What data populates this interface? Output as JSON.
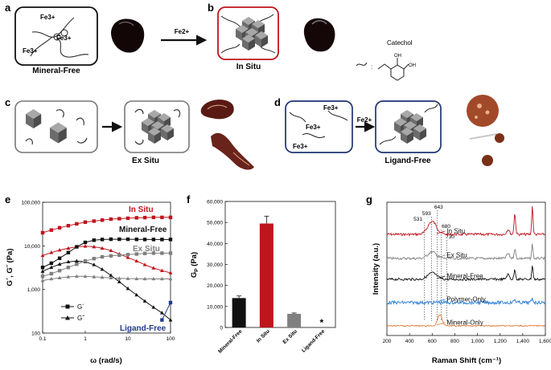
{
  "panels": {
    "a": {
      "letter": "a",
      "caption": "Mineral-Free",
      "ions": [
        "Fe3+",
        "Fe3+",
        "Fe3+"
      ]
    },
    "b": {
      "letter": "b",
      "caption": "In Situ",
      "arrow_label": "Fe2+",
      "catechol_label": "Catechol",
      "oh1": "OH",
      "oh2": "OH"
    },
    "c": {
      "letter": "c",
      "caption": "Ex Situ"
    },
    "d": {
      "letter": "d",
      "caption": "Ligand-Free",
      "ions": [
        "Fe3+",
        "Fe3+",
        "Fe3+"
      ],
      "arrow_label": "Fe2+"
    }
  },
  "colors": {
    "insitu": "#c0141c",
    "mineralfree": "#111111",
    "exsitu": "#808080",
    "ligandfree": "#233a8a",
    "polymeronly": "#2a7dd4",
    "mineralonly": "#e07b39",
    "frame_b": "#c0141c",
    "frame_d": "#1f3572"
  },
  "chart_data": [
    {
      "panel": "e",
      "type": "line",
      "xlabel": "ω (rad/s)",
      "ylabel": "G´, G˝ (Pa)",
      "xscale": "log",
      "yscale": "log",
      "xlim": [
        0.1,
        100
      ],
      "ylim": [
        100,
        100000
      ],
      "xticks": [
        "0.1",
        "1",
        "10",
        "100"
      ],
      "yticks": [
        "100",
        "1,000",
        "10,000",
        "100,000"
      ],
      "legend": [
        {
          "label": "G´",
          "marker": "square"
        },
        {
          "label": "G˝",
          "marker": "triangle"
        }
      ],
      "series": [
        {
          "name": "In Situ G´",
          "label": "In Situ",
          "color": "#c0141c",
          "marker": "square",
          "x": [
            0.1,
            0.16,
            0.25,
            0.4,
            0.63,
            1,
            1.6,
            2.5,
            4,
            6.3,
            10,
            16,
            25,
            40,
            63,
            100
          ],
          "y": [
            20000,
            23000,
            26000,
            29000,
            32000,
            35000,
            37000,
            39000,
            41000,
            42000,
            43000,
            44000,
            44500,
            45000,
            45000,
            45000
          ]
        },
        {
          "name": "In Situ G˝",
          "label": "",
          "color": "#c0141c",
          "marker": "triangle",
          "x": [
            0.1,
            0.16,
            0.25,
            0.4,
            0.63,
            1,
            1.6,
            2.5,
            4,
            6.3,
            10,
            16,
            25,
            40,
            63,
            100
          ],
          "y": [
            6000,
            7000,
            8000,
            8800,
            9500,
            9800,
            9500,
            8800,
            7800,
            6500,
            5400,
            4500,
            3700,
            3100,
            2700,
            2400
          ]
        },
        {
          "name": "Mineral-Free G´",
          "label": "Mineral-Free",
          "color": "#111111",
          "marker": "square",
          "x": [
            0.1,
            0.16,
            0.25,
            0.4,
            0.63,
            1,
            1.6,
            2.5,
            4,
            6.3,
            10,
            16,
            25,
            40,
            63,
            100
          ],
          "y": [
            3200,
            4000,
            5200,
            7000,
            9500,
            12000,
            13500,
            14000,
            14200,
            14200,
            14200,
            14100,
            14000,
            14000,
            14000,
            14000
          ]
        },
        {
          "name": "Mineral-Free G˝",
          "label": "",
          "color": "#111111",
          "marker": "triangle",
          "x": [
            0.1,
            0.16,
            0.25,
            0.4,
            0.63,
            1,
            1.6,
            2.5,
            4,
            6.3,
            10,
            16,
            25,
            40,
            63,
            100
          ],
          "y": [
            2600,
            3200,
            3800,
            4300,
            4500,
            4300,
            3700,
            2900,
            2100,
            1500,
            1050,
            750,
            540,
            390,
            290,
            200
          ]
        },
        {
          "name": "Ex Situ G´",
          "label": "Ex Situ",
          "color": "#808080",
          "marker": "square",
          "x": [
            0.1,
            0.16,
            0.25,
            0.4,
            0.63,
            1,
            1.6,
            2.5,
            4,
            6.3,
            10,
            16,
            25,
            40,
            63,
            100
          ],
          "y": [
            2000,
            2300,
            2700,
            3200,
            3800,
            4500,
            5100,
            5600,
            5900,
            6100,
            6300,
            6500,
            6700,
            6800,
            6800,
            6800
          ]
        },
        {
          "name": "Ex Situ G˝",
          "label": "",
          "color": "#808080",
          "marker": "triangle",
          "x": [
            0.1,
            0.16,
            0.25,
            0.4,
            0.63,
            1,
            1.6,
            2.5,
            4,
            6.3,
            10,
            16,
            25,
            40,
            63,
            100
          ],
          "y": [
            1600,
            1750,
            1850,
            1950,
            2000,
            2000,
            1950,
            1900,
            1850,
            1800,
            1780,
            1760,
            1750,
            1750,
            1750,
            1750
          ]
        },
        {
          "name": "Ligand-Free G´",
          "label": "Ligand-Free",
          "color": "#233a8a",
          "marker": "square",
          "x": [
            63,
            100
          ],
          "y": [
            200,
            500
          ]
        }
      ]
    },
    {
      "panel": "f",
      "type": "bar",
      "ylabel": "G",
      "ylabel_sub": "P",
      "ylabel_unit": " (Pa)",
      "ylim": [
        0,
        60000
      ],
      "yticks": [
        "0",
        "10,000",
        "20,000",
        "30,000",
        "40,000",
        "50,000",
        "60,000"
      ],
      "categories": [
        "Mineral-Free",
        "In Situ",
        "Ex Situ",
        "Ligand-Free"
      ],
      "values": [
        14000,
        49500,
        6500,
        0
      ],
      "errors": [
        1000,
        3500,
        400,
        0
      ],
      "colors": [
        "#111111",
        "#c0141c",
        "#808080",
        "#233a8a"
      ],
      "annotation": "*"
    },
    {
      "panel": "g",
      "type": "line",
      "xlabel": "Raman Shift (cm⁻¹)",
      "ylabel": "Intensity (a.u.)",
      "xlim": [
        200,
        1600
      ],
      "xticks": [
        "200",
        "400",
        "600",
        "800",
        "1,000",
        "1,200",
        "1,400",
        "1,600"
      ],
      "peaks": [
        "531",
        "593",
        "643",
        "680",
        "730"
      ],
      "peak_positions": [
        531,
        593,
        643,
        680,
        730
      ],
      "series": [
        {
          "name": "In Situ",
          "color": "#c0141c",
          "offset": 5
        },
        {
          "name": "Ex Situ",
          "color": "#808080",
          "offset": 4
        },
        {
          "name": "Mineral-Free",
          "color": "#111111",
          "offset": 3
        },
        {
          "name": "Polymer-Only",
          "color": "#2a7dd4",
          "offset": 2
        },
        {
          "name": "Mineral-Only",
          "color": "#e07b39",
          "offset": 1
        }
      ]
    }
  ]
}
